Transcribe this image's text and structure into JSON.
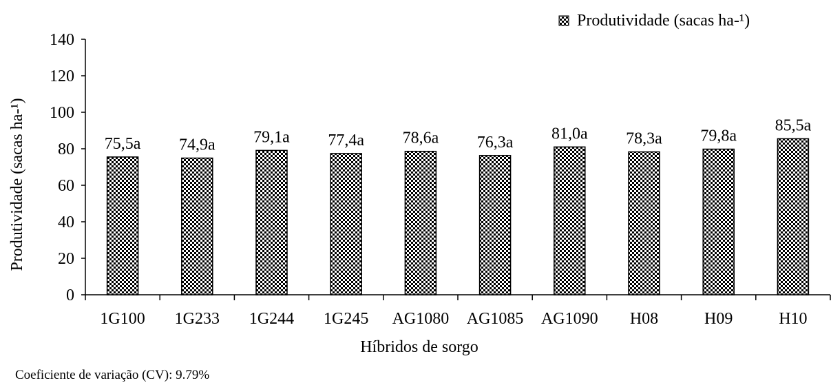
{
  "chart_data": {
    "type": "bar",
    "categories": [
      "1G100",
      "1G233",
      "1G244",
      "1G245",
      "AG1080",
      "AG1085",
      "AG1090",
      "H08",
      "H09",
      "H10"
    ],
    "series": [
      {
        "name": "Produtividade (sacas ha-¹)",
        "values": [
          75.5,
          74.9,
          79.1,
          77.4,
          78.6,
          76.3,
          81.0,
          78.3,
          79.8,
          85.5
        ],
        "labels": [
          "75,5a",
          "74,9a",
          "79,1a",
          "77,4a",
          "78,6a",
          "76,3a",
          "81,0a",
          "78,3a",
          "79,8a",
          "85,5a"
        ]
      }
    ],
    "xlabel": "Híbridos de sorgo",
    "ylabel": "Produtividade (sacas ha-¹)",
    "ylim": [
      0,
      140
    ],
    "yticks": [
      0,
      20,
      40,
      60,
      80,
      100,
      120,
      140
    ],
    "grid": false,
    "legend_position": "top-right",
    "bar_fill": "checkered",
    "colors": {
      "bar_dark": "#000000",
      "bar_light": "#ffffff",
      "axis": "#000000"
    }
  },
  "footnote": "Coeficiente de variação (CV): 9.79%"
}
